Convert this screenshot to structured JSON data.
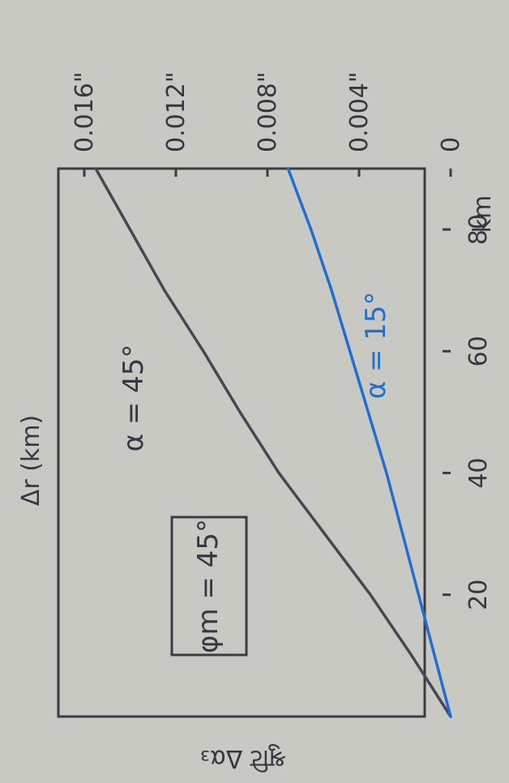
{
  "chart_data": {
    "type": "line",
    "title": "",
    "xlabel": "Δr (km)",
    "ylabel": "श्रुटि Δα₃",
    "x_unit_label": "km",
    "xlim": [
      0,
      90
    ],
    "ylim": [
      0,
      0.016
    ],
    "x_ticks": [
      20,
      40,
      60,
      80
    ],
    "x_tick_labels": [
      "20",
      "40",
      "60",
      "80"
    ],
    "y_ticks": [
      0,
      0.004,
      0.008,
      0.012,
      0.016
    ],
    "y_tick_labels": [
      "0",
      "0.004\"",
      "0.008\"",
      "0.012\"",
      "0.016\""
    ],
    "grid": false,
    "series": [
      {
        "name": "α = 45°",
        "color": "#4a4552",
        "x": [
          0,
          10,
          20,
          30,
          40,
          50,
          60,
          70,
          80,
          90
        ],
        "y": [
          0,
          0.0017,
          0.0035,
          0.0055,
          0.0075,
          0.0092,
          0.0108,
          0.0125,
          0.014,
          0.0155
        ]
      },
      {
        "name": "α = 15°",
        "color": "#1f6fd0",
        "x": [
          0,
          10,
          20,
          30,
          40,
          50,
          60,
          70,
          80,
          90
        ],
        "y": [
          0,
          0.0007,
          0.0014,
          0.0021,
          0.0028,
          0.0036,
          0.0044,
          0.0052,
          0.0061,
          0.0071
        ]
      }
    ],
    "annotations": {
      "boxed": "φm = 45°",
      "series_a": "α = 45°",
      "series_b": "α = 15°"
    }
  }
}
